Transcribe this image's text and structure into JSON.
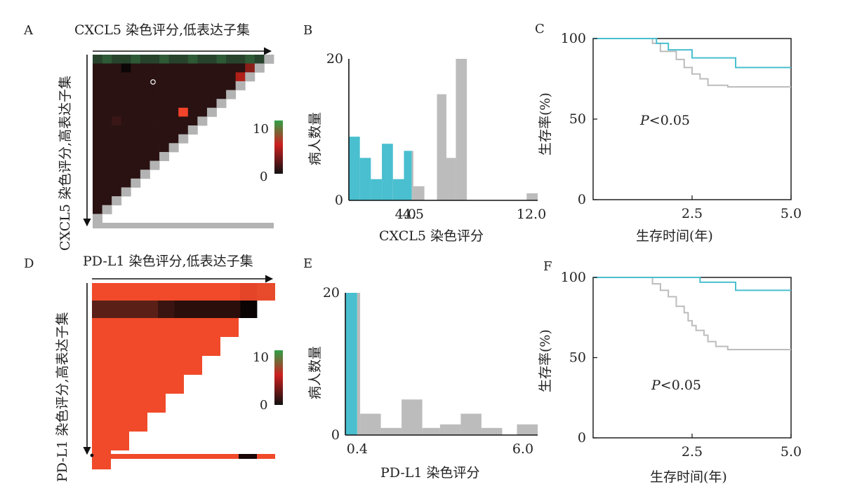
{
  "panels": {
    "A": {
      "letter": "A",
      "title": "CXCL5 染色评分,低表达子集",
      "ylabel": "CXCL5 染色评分,高表达子集"
    },
    "B": {
      "letter": "B",
      "xlabel": "CXCL5 染色评分",
      "ylabel": "病人数量"
    },
    "C": {
      "letter": "C",
      "xlabel": "生存时间(年)",
      "ylabel": "生存率(%)",
      "annotation": "P<0.05"
    },
    "D": {
      "letter": "D",
      "title": "PD-L1 染色评分,低表达子集",
      "ylabel": "PD-L1 染色评分,高表达子集"
    },
    "E": {
      "letter": "E",
      "xlabel": "PD-L1 染色评分",
      "ylabel": "病人数量"
    },
    "F": {
      "letter": "F",
      "xlabel": "生存时间(年)",
      "ylabel": "生存率(%)",
      "annotation": "P<0.05"
    }
  },
  "colors": {
    "cyan": "#49bfcf",
    "gray": "#bcbcbc",
    "heat_red": "#f04a2a",
    "heat_dark": "#1a0c0c",
    "heat_green": "#2fa046"
  },
  "chart_data": [
    {
      "id": "A",
      "type": "heatmap",
      "title": "CXCL5 染色评分,低表达子集",
      "ylabel": "CXCL5 染色评分,高表达子集",
      "legend": {
        "min": 0,
        "max": 10,
        "tick_labels": [
          "10",
          "0"
        ],
        "colors": [
          "#111111",
          "#cc2020",
          "#2fa046"
        ]
      },
      "grid": [
        [
          1,
          1,
          1,
          1,
          1,
          1,
          1,
          1,
          1,
          1,
          1,
          1,
          1,
          1,
          1,
          1,
          1,
          1,
          1
        ],
        [
          1,
          1,
          1,
          0,
          1,
          1,
          1,
          1,
          1,
          1,
          1,
          1,
          1,
          1,
          1,
          1,
          5,
          1,
          1
        ],
        [
          1,
          1,
          1,
          1,
          1,
          1,
          1,
          1,
          1,
          1,
          1,
          1,
          1,
          1,
          1,
          6,
          1,
          1,
          1
        ],
        [
          1,
          1,
          1,
          1,
          1,
          1,
          1,
          1,
          1,
          1,
          1,
          1,
          1,
          1,
          1,
          1,
          1,
          1,
          1
        ],
        [
          1,
          1,
          1,
          1,
          1,
          1,
          1,
          1,
          1,
          1,
          1,
          1,
          1,
          1,
          1,
          1,
          1,
          1,
          1
        ],
        [
          1,
          1,
          1,
          1,
          1,
          1,
          1,
          1,
          1,
          1,
          1,
          1,
          1,
          1,
          1,
          1,
          1,
          1,
          1
        ],
        [
          1,
          1,
          1,
          1,
          1,
          1,
          1,
          1,
          1,
          9,
          1,
          1,
          1,
          1,
          1,
          1,
          1,
          1,
          1
        ],
        [
          1,
          1,
          2,
          1,
          1,
          1,
          1,
          1,
          1,
          1,
          1,
          1,
          1,
          1,
          1,
          1,
          1,
          1,
          1
        ],
        [
          1,
          1,
          1,
          1,
          1,
          1,
          1,
          1,
          1,
          1,
          1,
          1,
          1,
          1,
          1,
          1,
          1,
          1,
          1
        ],
        [
          1,
          1,
          1,
          1,
          1,
          1,
          1,
          1,
          1,
          1,
          1,
          1,
          1,
          1,
          1,
          1,
          1,
          1,
          1
        ],
        [
          1,
          1,
          1,
          1,
          1,
          1,
          1,
          1,
          1,
          1,
          1,
          1,
          1,
          1,
          1,
          1,
          1,
          1,
          1
        ],
        [
          1,
          1,
          1,
          1,
          1,
          1,
          1,
          1,
          1,
          1,
          1,
          1,
          1,
          1,
          1,
          1,
          1,
          1,
          1
        ],
        [
          1,
          1,
          1,
          1,
          1,
          1,
          1,
          1,
          1,
          1,
          1,
          1,
          1,
          1,
          1,
          1,
          1,
          1,
          1
        ],
        [
          1,
          1,
          1,
          1,
          1,
          1,
          1,
          1,
          1,
          1,
          1,
          1,
          1,
          1,
          1,
          1,
          1,
          1,
          1
        ],
        [
          1,
          1,
          1,
          1,
          1,
          1,
          1,
          1,
          1,
          1,
          1,
          1,
          1,
          1,
          1,
          1,
          1,
          1,
          1
        ],
        [
          1,
          1,
          1,
          1,
          1,
          1,
          1,
          1,
          1,
          1,
          1,
          1,
          1,
          1,
          1,
          1,
          1,
          1,
          1
        ],
        [
          1,
          1,
          1,
          1,
          1,
          1,
          1,
          1,
          1,
          1,
          1,
          1,
          1,
          1,
          1,
          1,
          1,
          1,
          1
        ],
        [
          1,
          1,
          1,
          1,
          1,
          1,
          1,
          1,
          1,
          1,
          1,
          1,
          1,
          1,
          1,
          1,
          1,
          1,
          1
        ]
      ],
      "top_row_green": true
    },
    {
      "id": "B",
      "type": "bar",
      "xlabel": "CXCL5 染色评分",
      "ylabel": "病人数量",
      "xlim": [
        0.4,
        12.4
      ],
      "ylim": [
        0,
        20
      ],
      "xticks": [
        "4.0",
        "4.5",
        "12.0"
      ],
      "xtick_values": [
        4.0,
        4.5,
        12.0
      ],
      "yticks": [
        "0",
        "20"
      ],
      "ytick_values": [
        0,
        20
      ],
      "series": [
        {
          "color": "#49bfcf",
          "bins": [
            [
              0.4,
              1.1,
              9
            ],
            [
              1.1,
              1.8,
              6
            ],
            [
              1.8,
              2.5,
              3
            ],
            [
              2.5,
              3.2,
              8
            ],
            [
              3.2,
              3.9,
              3
            ],
            [
              3.9,
              4.4,
              7
            ]
          ]
        },
        {
          "color": "#bcbcbc",
          "bins": [
            [
              4.4,
              4.5,
              7
            ],
            [
              4.5,
              5.2,
              2
            ],
            [
              6.0,
              6.6,
              15
            ],
            [
              6.6,
              7.2,
              6
            ],
            [
              7.2,
              7.9,
              20
            ],
            [
              11.7,
              12.4,
              1
            ]
          ]
        }
      ]
    },
    {
      "id": "C",
      "type": "line",
      "xlabel": "生存时间(年)",
      "ylabel": "生存率(%)",
      "xlim": [
        0,
        5
      ],
      "ylim": [
        0,
        100
      ],
      "xticks": [
        "2.5",
        "5.0"
      ],
      "xtick_values": [
        2.5,
        5.0
      ],
      "yticks": [
        "0",
        "50",
        "100"
      ],
      "ytick_values": [
        0,
        50,
        100
      ],
      "annotation": "P<0.05",
      "series": [
        {
          "color": "#49bfcf",
          "x": [
            0,
            1.6,
            1.6,
            1.9,
            1.9,
            2.5,
            2.5,
            3.6,
            3.6,
            5.0
          ],
          "y": [
            100,
            100,
            97,
            97,
            93,
            93,
            88,
            88,
            82,
            82
          ]
        },
        {
          "color": "#bcbcbc",
          "x": [
            0,
            1.5,
            1.5,
            1.7,
            1.7,
            2.1,
            2.1,
            2.3,
            2.3,
            2.5,
            2.5,
            2.7,
            2.7,
            2.9,
            2.9,
            3.4,
            3.4,
            5.0
          ],
          "y": [
            100,
            100,
            97,
            97,
            92,
            92,
            87,
            87,
            82,
            82,
            78,
            78,
            75,
            75,
            71,
            71,
            70,
            70
          ]
        }
      ]
    },
    {
      "id": "D",
      "type": "heatmap",
      "title": "PD-L1 染色评分,低表达子集",
      "ylabel": "PD-L1 染色评分,高表达子集",
      "legend": {
        "min": 0,
        "max": 10,
        "tick_labels": [
          "10",
          "0"
        ],
        "colors": [
          "#111111",
          "#cc2020",
          "#2fa046"
        ]
      },
      "dark_row_values": [
        3,
        3,
        3,
        3,
        2,
        1,
        1,
        1,
        1,
        0
      ],
      "bottom_strip_dark": [
        8
      ]
    },
    {
      "id": "E",
      "type": "bar",
      "xlabel": "PD-L1 染色评分",
      "ylabel": "病人数量",
      "xlim": [
        0,
        6.5
      ],
      "ylim": [
        0,
        20
      ],
      "xticks": [
        "0.4",
        "6.0"
      ],
      "xtick_values": [
        0.4,
        6.0
      ],
      "yticks": [
        "0",
        "20"
      ],
      "ytick_values": [
        0,
        20
      ],
      "series": [
        {
          "color": "#49bfcf",
          "bins": [
            [
              0,
              0.4,
              20
            ]
          ]
        },
        {
          "color": "#bcbcbc",
          "bins": [
            [
              0.4,
              0.5,
              20
            ],
            [
              0.5,
              1.2,
              3
            ],
            [
              1.2,
              1.9,
              1
            ],
            [
              1.9,
              2.6,
              5
            ],
            [
              2.6,
              3.2,
              1
            ],
            [
              3.2,
              3.9,
              1.5
            ],
            [
              3.9,
              4.6,
              3
            ],
            [
              4.6,
              5.3,
              1
            ],
            [
              5.8,
              6.5,
              1.5
            ]
          ]
        }
      ]
    },
    {
      "id": "F",
      "type": "line",
      "xlabel": "生存时间(年)",
      "ylabel": "生存率(%)",
      "xlim": [
        0,
        5
      ],
      "ylim": [
        0,
        100
      ],
      "xticks": [
        "2.5",
        "5.0"
      ],
      "xtick_values": [
        2.5,
        5.0
      ],
      "yticks": [
        "0",
        "50",
        "100"
      ],
      "ytick_values": [
        0,
        50,
        100
      ],
      "annotation": "P<0.05",
      "series": [
        {
          "color": "#49bfcf",
          "x": [
            0,
            2.7,
            2.7,
            3.6,
            3.6,
            5.0
          ],
          "y": [
            100,
            100,
            97,
            97,
            92,
            92
          ]
        },
        {
          "color": "#bcbcbc",
          "x": [
            0,
            1.5,
            1.5,
            1.7,
            1.7,
            1.9,
            1.9,
            2.1,
            2.1,
            2.3,
            2.3,
            2.4,
            2.4,
            2.5,
            2.5,
            2.6,
            2.6,
            2.8,
            2.8,
            2.9,
            2.9,
            3.1,
            3.1,
            3.4,
            3.4,
            5.0
          ],
          "y": [
            100,
            100,
            96,
            96,
            92,
            92,
            88,
            88,
            82,
            82,
            78,
            78,
            73,
            73,
            70,
            70,
            67,
            67,
            64,
            64,
            60,
            60,
            57,
            57,
            55,
            55
          ]
        }
      ]
    }
  ]
}
